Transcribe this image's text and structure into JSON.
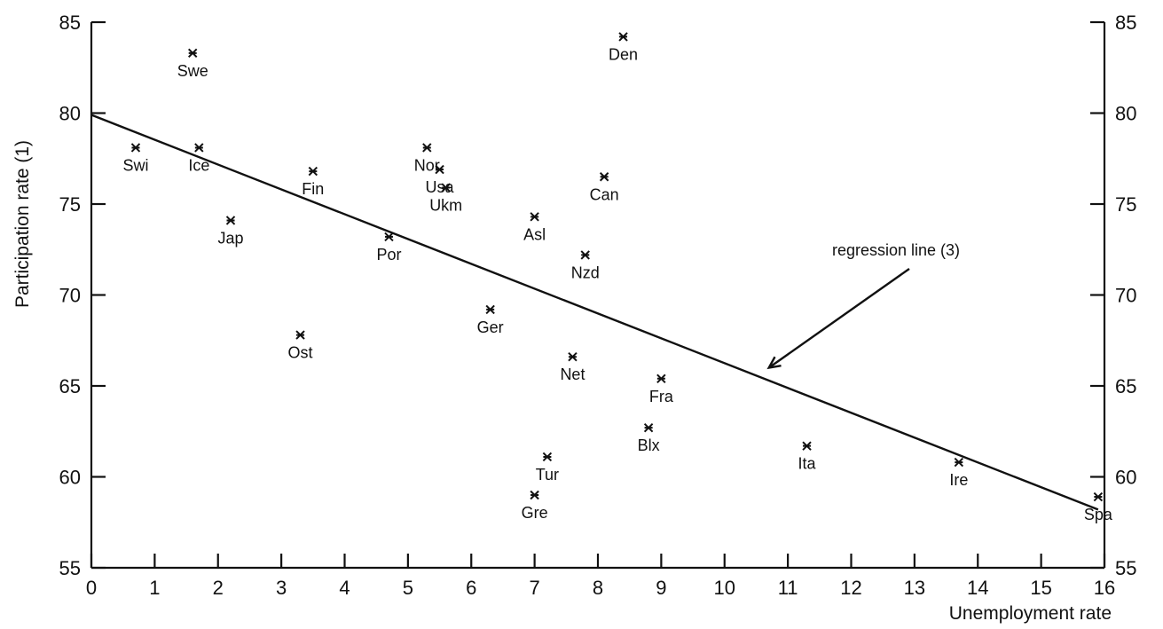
{
  "chart_data": {
    "type": "scatter",
    "title": "",
    "xlabel": "Unemployment rate",
    "ylabel": "Participation rate (1)",
    "xlim": [
      0,
      16
    ],
    "ylim": [
      55,
      85
    ],
    "x_ticks": [
      "0",
      "1",
      "2",
      "3",
      "4",
      "5",
      "6",
      "7",
      "8",
      "9",
      "10",
      "11",
      "12",
      "13",
      "14",
      "15",
      "16"
    ],
    "y_ticks": [
      "55",
      "60",
      "65",
      "70",
      "75",
      "80",
      "85"
    ],
    "right_axis_ticks": [
      "55",
      "60",
      "65",
      "70",
      "75",
      "80",
      "85"
    ],
    "grid": false,
    "points": [
      {
        "label": "Swe",
        "x": 1.6,
        "y": 83.3
      },
      {
        "label": "Den",
        "x": 8.4,
        "y": 84.2
      },
      {
        "label": "Swi",
        "x": 0.7,
        "y": 78.1
      },
      {
        "label": "Ice",
        "x": 1.7,
        "y": 78.1
      },
      {
        "label": "Fin",
        "x": 3.5,
        "y": 76.8
      },
      {
        "label": "Nor",
        "x": 5.3,
        "y": 78.1
      },
      {
        "label": "Usa",
        "x": 5.5,
        "y": 76.9
      },
      {
        "label": "Ukm",
        "x": 5.6,
        "y": 75.9
      },
      {
        "label": "Can",
        "x": 8.1,
        "y": 76.5
      },
      {
        "label": "Jap",
        "x": 2.2,
        "y": 74.1
      },
      {
        "label": "Asl",
        "x": 7.0,
        "y": 74.3
      },
      {
        "label": "Por",
        "x": 4.7,
        "y": 73.2
      },
      {
        "label": "Nzd",
        "x": 7.8,
        "y": 72.2
      },
      {
        "label": "Ger",
        "x": 6.3,
        "y": 69.2
      },
      {
        "label": "Ost",
        "x": 3.3,
        "y": 67.8
      },
      {
        "label": "Net",
        "x": 7.6,
        "y": 66.6
      },
      {
        "label": "Fra",
        "x": 9.0,
        "y": 65.4
      },
      {
        "label": "Blx",
        "x": 8.8,
        "y": 62.7
      },
      {
        "label": "Ita",
        "x": 11.3,
        "y": 61.7
      },
      {
        "label": "Tur",
        "x": 7.2,
        "y": 61.1
      },
      {
        "label": "Gre",
        "x": 7.0,
        "y": 59.0
      },
      {
        "label": "Ire",
        "x": 13.7,
        "y": 60.8
      },
      {
        "label": "Spa",
        "x": 15.9,
        "y": 58.9
      }
    ],
    "regression_line": {
      "x": [
        0,
        15.9
      ],
      "y": [
        79.9,
        58.2
      ]
    },
    "annotation": {
      "text": "regression line (3)",
      "points_to": {
        "x": 10.7,
        "y": 66.0
      }
    }
  }
}
